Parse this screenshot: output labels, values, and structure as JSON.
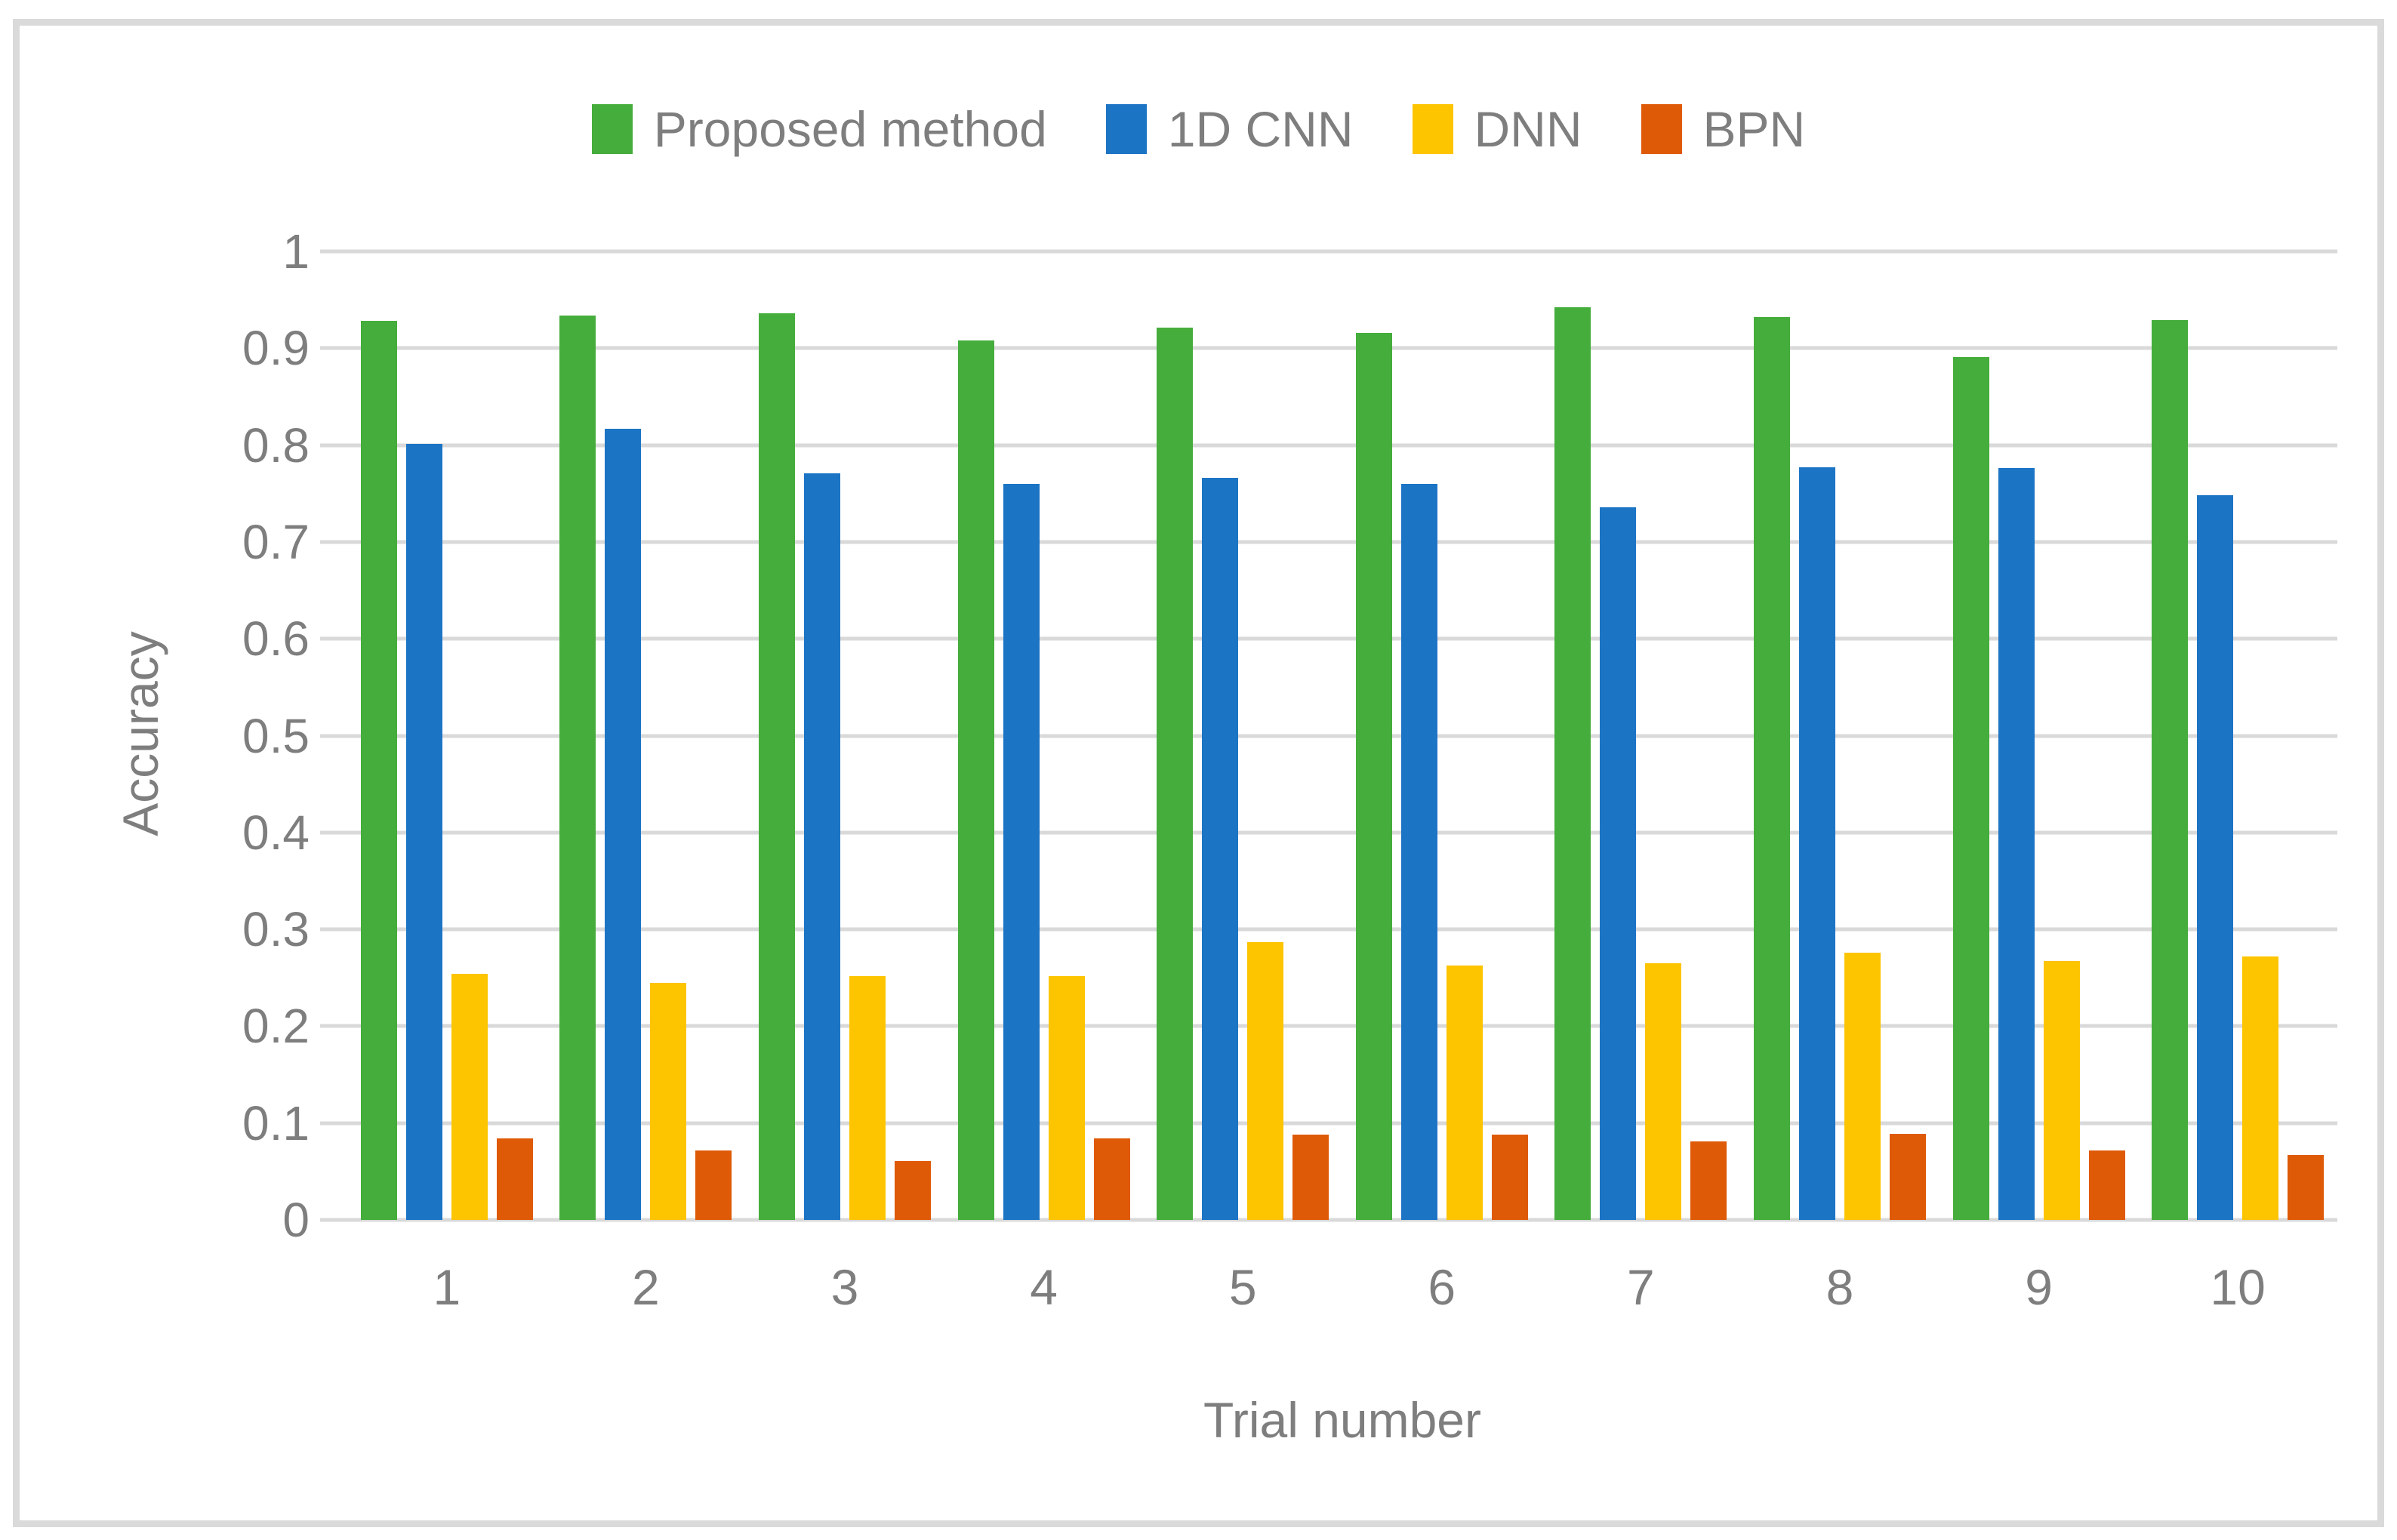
{
  "figure": {
    "border_color": "#DADADA",
    "background_color": "#FFFFFF",
    "text_color": "#7E7E7E",
    "gridline_color": "#D9D9D9"
  },
  "legend": {
    "items": [
      {
        "label": "Proposed method",
        "color": "#45AD3B"
      },
      {
        "label": "1D CNN",
        "color": "#1C74C5"
      },
      {
        "label": "DNN",
        "color": "#FDC400"
      },
      {
        "label": "BPN",
        "color": "#DE5A07"
      }
    ]
  },
  "chart_data": {
    "type": "bar",
    "title": "",
    "xlabel": "Trial number",
    "ylabel": "Accuracy",
    "categories": [
      "1",
      "2",
      "3",
      "4",
      "5",
      "6",
      "7",
      "8",
      "9",
      "10"
    ],
    "series": [
      {
        "name": "Proposed method",
        "color": "#45AD3B",
        "values": [
          0.928,
          0.934,
          0.936,
          0.908,
          0.921,
          0.916,
          0.942,
          0.932,
          0.891,
          0.929
        ]
      },
      {
        "name": "1D CNN",
        "color": "#1C74C5",
        "values": [
          0.801,
          0.817,
          0.771,
          0.76,
          0.766,
          0.76,
          0.736,
          0.777,
          0.776,
          0.748
        ]
      },
      {
        "name": "DNN",
        "color": "#FDC400",
        "values": [
          0.254,
          0.245,
          0.252,
          0.252,
          0.287,
          0.263,
          0.265,
          0.276,
          0.267,
          0.272
        ]
      },
      {
        "name": "BPN",
        "color": "#DE5A07",
        "values": [
          0.084,
          0.072,
          0.061,
          0.084,
          0.088,
          0.088,
          0.081,
          0.089,
          0.072,
          0.067
        ]
      }
    ],
    "ylim": [
      0,
      1
    ],
    "y_ticks": [
      "1",
      "0.9",
      "0.8",
      "0.7",
      "0.6",
      "0.5",
      "0.4",
      "0.3",
      "0.2",
      "0.1",
      "0"
    ],
    "grid": true,
    "legend_position": "top"
  }
}
